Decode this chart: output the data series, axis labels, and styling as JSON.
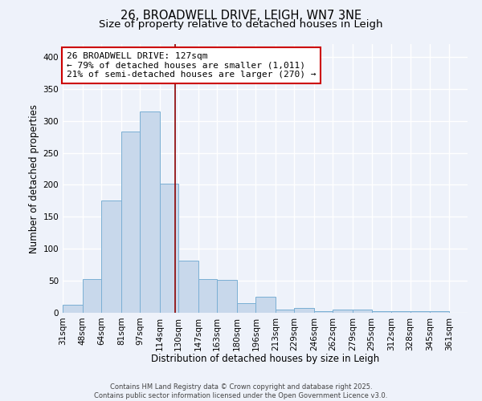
{
  "title1": "26, BROADWELL DRIVE, LEIGH, WN7 3NE",
  "title2": "Size of property relative to detached houses in Leigh",
  "xlabel": "Distribution of detached houses by size in Leigh",
  "ylabel": "Number of detached properties",
  "bin_labels": [
    "31sqm",
    "48sqm",
    "64sqm",
    "81sqm",
    "97sqm",
    "114sqm",
    "130sqm",
    "147sqm",
    "163sqm",
    "180sqm",
    "196sqm",
    "213sqm",
    "229sqm",
    "246sqm",
    "262sqm",
    "279sqm",
    "295sqm",
    "312sqm",
    "328sqm",
    "345sqm",
    "361sqm"
  ],
  "bin_edges": [
    31,
    48,
    64,
    81,
    97,
    114,
    130,
    147,
    163,
    180,
    196,
    213,
    229,
    246,
    262,
    279,
    295,
    312,
    328,
    345,
    361
  ],
  "bar_heights": [
    13,
    53,
    176,
    283,
    315,
    202,
    82,
    53,
    51,
    15,
    25,
    5,
    7,
    3,
    5,
    5,
    3,
    2,
    2,
    2
  ],
  "bar_color": "#c8d8eb",
  "bar_edge_color": "#7aafd4",
  "ref_line_x": 127,
  "ref_line_color": "#8b0000",
  "annotation_text": "26 BROADWELL DRIVE: 127sqm\n← 79% of detached houses are smaller (1,011)\n21% of semi-detached houses are larger (270) →",
  "annotation_box_facecolor": "#ffffff",
  "annotation_border_color": "#cc0000",
  "ylim": [
    0,
    420
  ],
  "yticks": [
    0,
    50,
    100,
    150,
    200,
    250,
    300,
    350,
    400
  ],
  "background_color": "#eef2fa",
  "grid_color": "#ffffff",
  "footer_text": "Contains HM Land Registry data © Crown copyright and database right 2025.\nContains public sector information licensed under the Open Government Licence v3.0.",
  "title1_fontsize": 10.5,
  "title2_fontsize": 9.5,
  "xlabel_fontsize": 8.5,
  "ylabel_fontsize": 8.5,
  "tick_fontsize": 7.5,
  "annotation_fontsize": 8,
  "footer_fontsize": 6
}
